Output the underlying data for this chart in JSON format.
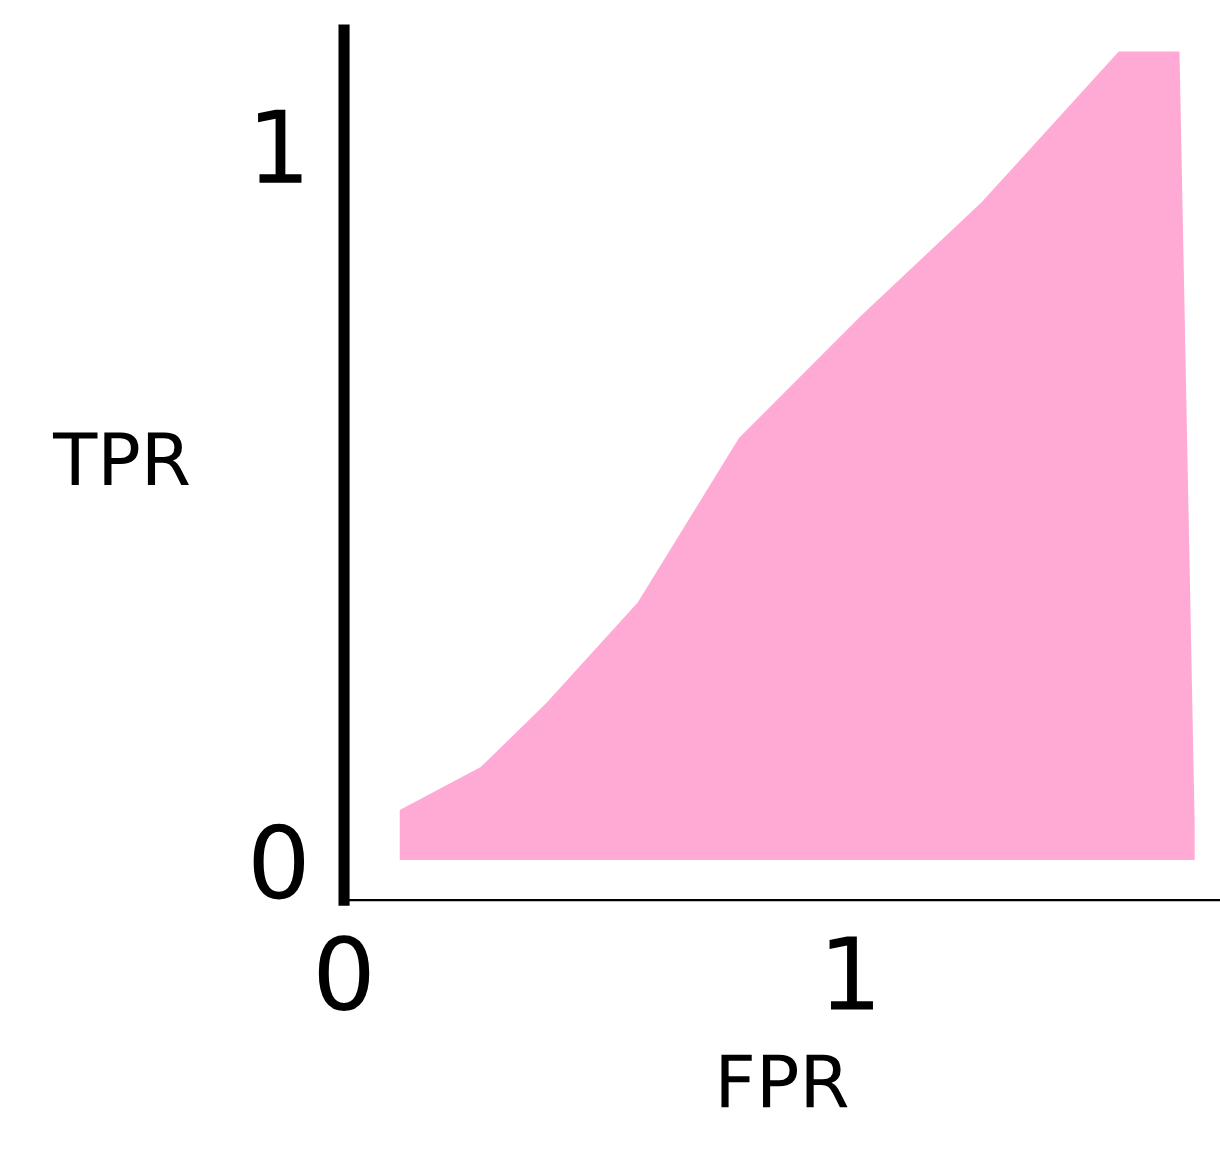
{
  "chart_data": {
    "type": "area",
    "xlabel": "FPR",
    "ylabel": "TPR",
    "x": [
      0.11,
      0.27,
      0.4,
      0.58,
      0.78,
      1.02,
      1.26,
      1.53,
      1.65,
      1.68
    ],
    "series": [
      {
        "color": "#ffaad4",
        "values": [
          0.07,
          0.13,
          0.22,
          0.36,
          0.59,
          0.76,
          0.92,
          1.13,
          1.13,
          0.05
        ]
      }
    ],
    "xlim": [
      0,
      1.73
    ],
    "ylim": [
      -0.056,
      1.16
    ],
    "xticks": [
      0,
      1
    ],
    "yticks": [
      0,
      1
    ],
    "grid": false,
    "legend": false
  }
}
